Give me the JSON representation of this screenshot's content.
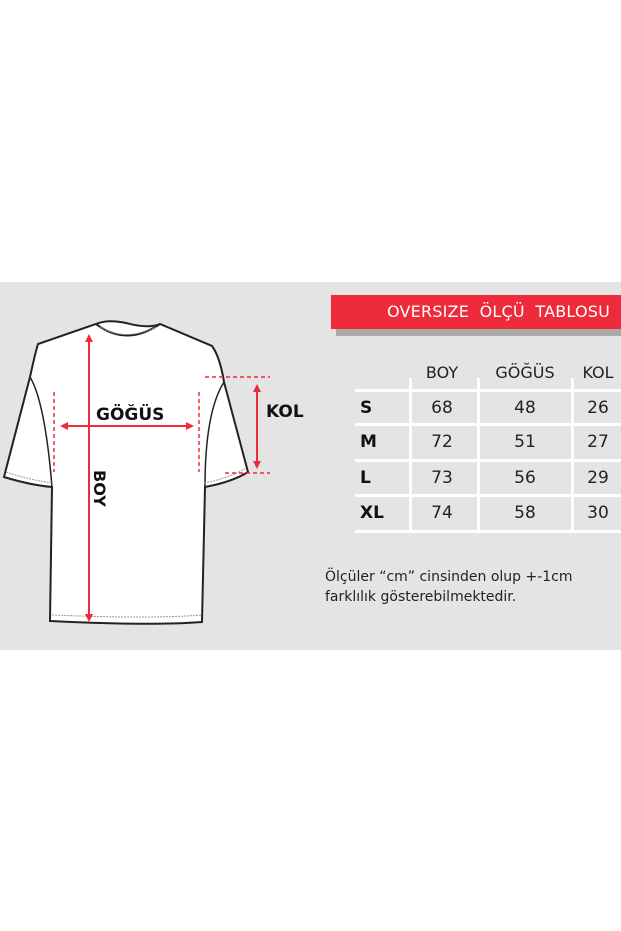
{
  "diagram": {
    "labels": {
      "chest": "GÖĞÜS",
      "length": "BOY",
      "sleeve": "KOL"
    },
    "colors": {
      "arrow": "#ee2b3a",
      "background": "#e4e4e4"
    }
  },
  "banner": {
    "title": "OVERSIZE  ÖLÇÜ  TABLOSU",
    "color": "#ee2b3a"
  },
  "table": {
    "headers": [
      "BOY",
      "GÖĞÜS",
      "KOL"
    ],
    "rows": [
      {
        "size": "S",
        "values": [
          "68",
          "48",
          "26"
        ]
      },
      {
        "size": "M",
        "values": [
          "72",
          "51",
          "27"
        ]
      },
      {
        "size": "L",
        "values": [
          "73",
          "56",
          "29"
        ]
      },
      {
        "size": "XL",
        "values": [
          "74",
          "58",
          "30"
        ]
      }
    ]
  },
  "note": {
    "line1": "Ölçüler “cm” cinsinden olup +-1cm",
    "line2": "farklılık gösterebilmektedir."
  }
}
